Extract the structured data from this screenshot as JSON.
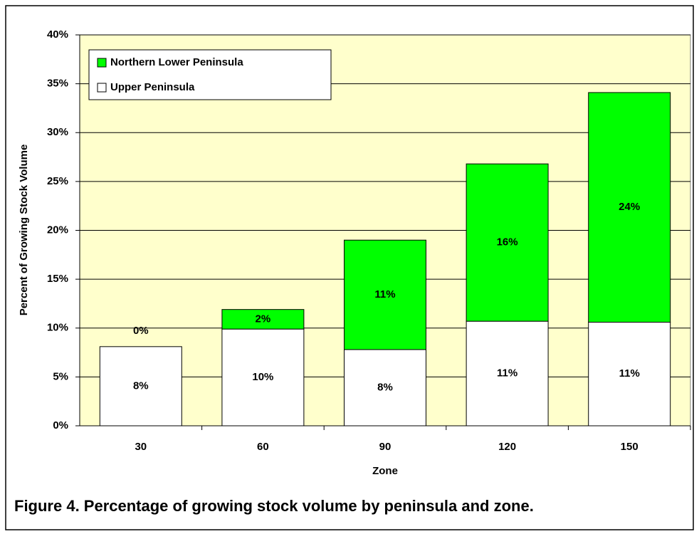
{
  "chart_data": {
    "type": "stacked_bar",
    "caption": "Figure 4. Percentage of growing stock volume by peninsula and zone.",
    "x_label": "Zone",
    "y_label": "Percent of Growing Stock Volume",
    "categories": [
      "30",
      "60",
      "90",
      "120",
      "150"
    ],
    "series": [
      {
        "name": "Upper Peninsula",
        "color": "#ffffff",
        "values": [
          8.1,
          9.9,
          7.8,
          10.7,
          10.6
        ],
        "value_labels": [
          "8%",
          "10%",
          "8%",
          "11%",
          "11%"
        ]
      },
      {
        "name": "Northern Lower Peninsula",
        "color": "#00ff00",
        "values": [
          0,
          2.0,
          11.2,
          16.1,
          23.5
        ],
        "value_labels": [
          "0%",
          "2%",
          "11%",
          "16%",
          "24%"
        ]
      }
    ],
    "ylim": [
      0,
      40
    ],
    "yticks": [
      {
        "value": 0,
        "label": "0%"
      },
      {
        "value": 5,
        "label": "5%"
      },
      {
        "value": 10,
        "label": "10%"
      },
      {
        "value": 15,
        "label": "15%"
      },
      {
        "value": 20,
        "label": "20%"
      },
      {
        "value": 25,
        "label": "25%"
      },
      {
        "value": 30,
        "label": "30%"
      },
      {
        "value": 35,
        "label": "35%"
      },
      {
        "value": 40,
        "label": "40%"
      }
    ],
    "grid": true,
    "legend": "top-left",
    "plot_background": "#ffffcc"
  }
}
